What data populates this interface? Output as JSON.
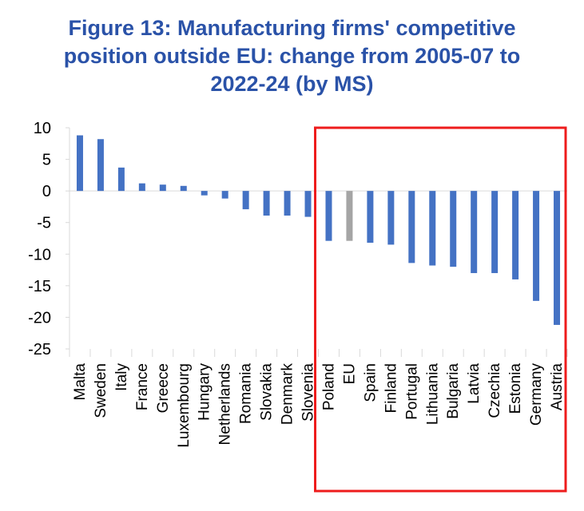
{
  "title_lines": [
    "Figure 13: Manufacturing firms' competitive",
    "position outside EU: change from 2005-07 to",
    "2022-24 (by MS)"
  ],
  "chart_data": {
    "type": "bar",
    "title": "Figure 13: Manufacturing firms' competitive position outside EU: change from 2005-07 to 2022-24 (by MS)",
    "categories": [
      "Malta",
      "Sweden",
      "Italy",
      "France",
      "Greece",
      "Luxembourg",
      "Hungary",
      "Netherlands",
      "Romania",
      "Slovakia",
      "Denmark",
      "Slovenia",
      "Poland",
      "EU",
      "Spain",
      "Finland",
      "Portugal",
      "Lithuania",
      "Bulgaria",
      "Latvia",
      "Czechia",
      "Estonia",
      "Germany",
      "Austria"
    ],
    "values": [
      8.8,
      8.2,
      3.7,
      1.2,
      1.0,
      0.8,
      -0.7,
      -1.2,
      -2.9,
      -3.9,
      -3.9,
      -4.1,
      -7.9,
      -7.9,
      -8.2,
      -8.5,
      -11.4,
      -11.8,
      -12.0,
      -13.0,
      -13.0,
      -14.0,
      -17.4,
      -21.2
    ],
    "series_colors": {
      "default": "#4472c4",
      "highlight": "#a5a5a5"
    },
    "highlight_category": "EU",
    "highlight_box": {
      "from": "Poland",
      "to": "Austria",
      "color": "#ee1c1c"
    },
    "ylim": [
      -25,
      10
    ],
    "yticks": [
      "10",
      "5",
      "0",
      "-5",
      "-10",
      "-15",
      "-20",
      "-25"
    ],
    "ytick_values": [
      10,
      5,
      0,
      -5,
      -10,
      -15,
      -20,
      -25
    ],
    "grid": false,
    "xlabel": "",
    "ylabel": ""
  }
}
